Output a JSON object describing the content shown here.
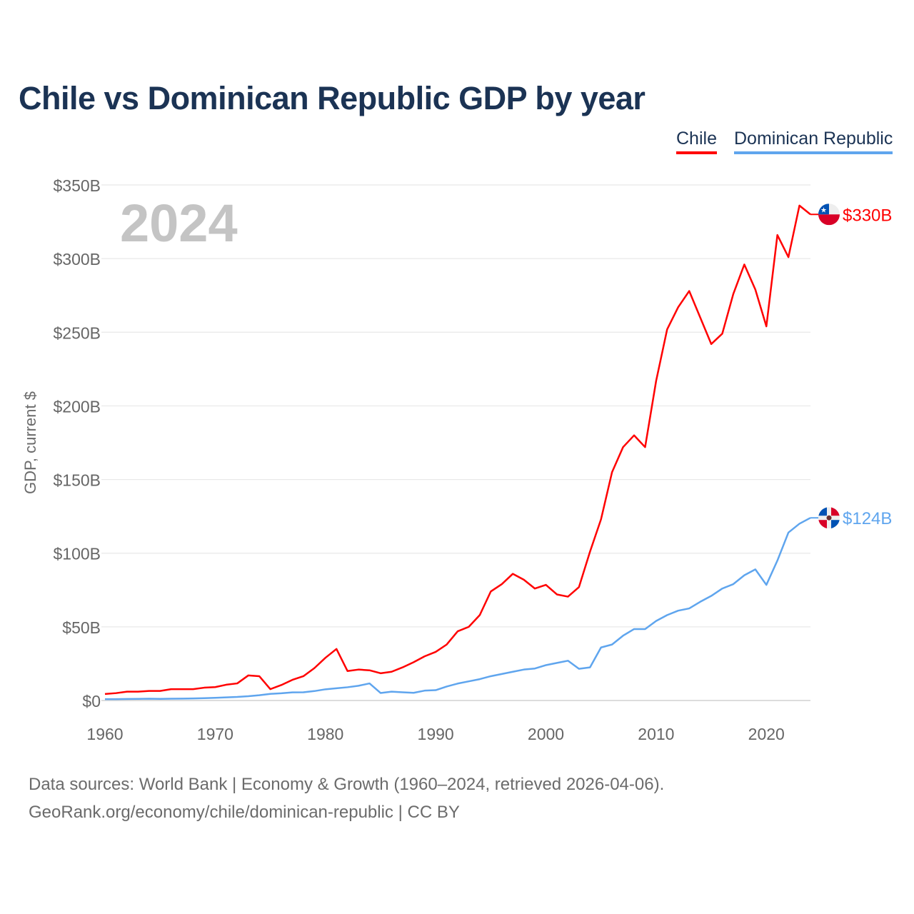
{
  "chart_data": {
    "type": "line",
    "title": "Chile vs Dominican Republic GDP by year",
    "ylabel": "GDP, current $",
    "xlabel": "",
    "year_watermark": "2024",
    "ylim": [
      0,
      350
    ],
    "xlim": [
      1960,
      2024
    ],
    "y_ticks": [
      0,
      50,
      100,
      150,
      200,
      250,
      300,
      350
    ],
    "y_tick_labels": [
      "$0",
      "$50B",
      "$100B",
      "$150B",
      "$200B",
      "$250B",
      "$300B",
      "$350B"
    ],
    "x_ticks": [
      1960,
      1970,
      1980,
      1990,
      2000,
      2010,
      2020
    ],
    "x_tick_labels": [
      "1960",
      "1970",
      "1980",
      "1990",
      "2000",
      "2010",
      "2020"
    ],
    "grid": true,
    "legend_position": "top-right",
    "x": [
      1960,
      1961,
      1962,
      1963,
      1964,
      1965,
      1966,
      1967,
      1968,
      1969,
      1970,
      1971,
      1972,
      1973,
      1974,
      1975,
      1976,
      1977,
      1978,
      1979,
      1980,
      1981,
      1982,
      1983,
      1984,
      1985,
      1986,
      1987,
      1988,
      1989,
      1990,
      1991,
      1992,
      1993,
      1994,
      1995,
      1996,
      1997,
      1998,
      1999,
      2000,
      2001,
      2002,
      2003,
      2004,
      2005,
      2006,
      2007,
      2008,
      2009,
      2010,
      2011,
      2012,
      2013,
      2014,
      2015,
      2016,
      2017,
      2018,
      2019,
      2020,
      2021,
      2022,
      2023,
      2024
    ],
    "series": [
      {
        "name": "Chile",
        "color": "#ff0000",
        "end_label": "$330B",
        "values": [
          4.4,
          5,
          6,
          6,
          6.5,
          6.5,
          7.7,
          7.7,
          7.7,
          8.7,
          9.1,
          10.7,
          11.6,
          17,
          16.5,
          7.7,
          10.5,
          14,
          16.5,
          22,
          29,
          35,
          20,
          21,
          20.5,
          18.5,
          19.5,
          22.5,
          26,
          30,
          33,
          38,
          47,
          50,
          58,
          74,
          79,
          86,
          82,
          76,
          78.5,
          72,
          70.5,
          77,
          101,
          123,
          155,
          172,
          180,
          172,
          217,
          252,
          267,
          278,
          260,
          242,
          249,
          276,
          296,
          279,
          254,
          316,
          301,
          336,
          330
        ]
      },
      {
        "name": "Dominican Republic",
        "color": "#5fa5ee",
        "end_label": "$124B",
        "values": [
          0.9,
          0.9,
          1,
          1.1,
          1.2,
          1.1,
          1.2,
          1.3,
          1.4,
          1.6,
          1.8,
          2.1,
          2.4,
          2.9,
          3.6,
          4.5,
          4.9,
          5.5,
          5.6,
          6.4,
          7.6,
          8.3,
          9,
          10,
          11.6,
          5.1,
          6,
          5.6,
          5.2,
          6.7,
          7,
          9.5,
          11.5,
          13,
          14.5,
          16.5,
          18,
          19.5,
          21,
          21.7,
          24,
          25.5,
          27,
          21.5,
          22.5,
          36,
          38,
          44,
          48.5,
          48.5,
          54,
          58,
          61,
          62.5,
          67,
          71,
          76,
          79,
          85,
          89,
          78.5,
          95,
          114,
          120,
          124
        ]
      }
    ]
  },
  "footer": {
    "line1": "Data sources: World Bank | Economy & Growth (1960–2024, retrieved 2026-04-06).",
    "line2": "GeoRank.org/economy/chile/dominican-republic | CC BY"
  }
}
